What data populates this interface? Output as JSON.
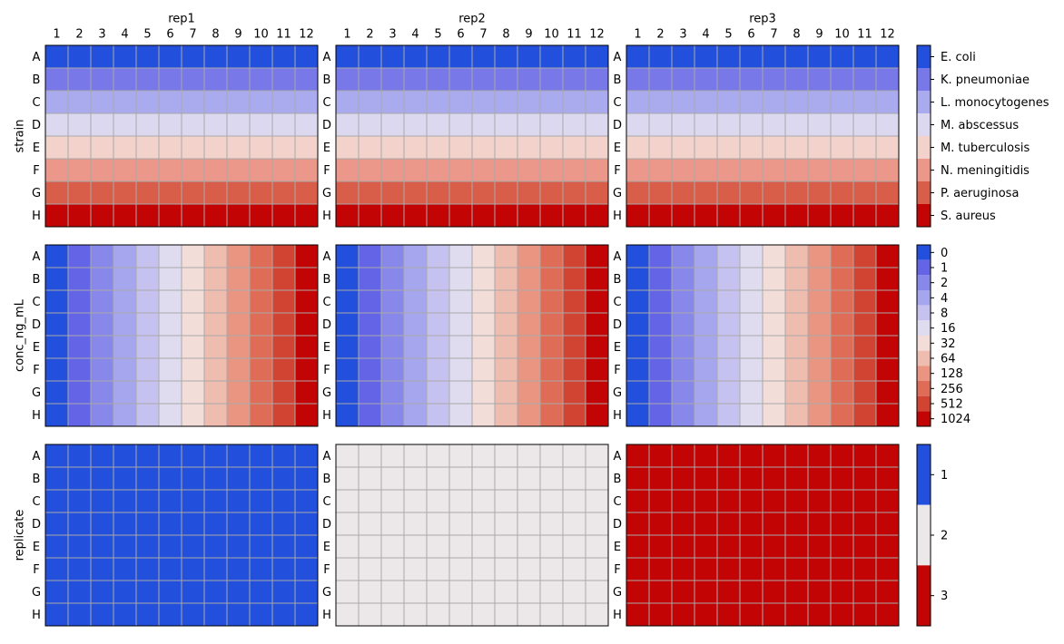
{
  "chart_data": {
    "type": "heatmap",
    "row_labels": [
      "A",
      "B",
      "C",
      "D",
      "E",
      "F",
      "G",
      "H"
    ],
    "col_labels": [
      "1",
      "2",
      "3",
      "4",
      "5",
      "6",
      "7",
      "8",
      "9",
      "10",
      "11",
      "12"
    ],
    "replicates": [
      "rep1",
      "rep2",
      "rep3"
    ],
    "grid": true,
    "legend_position": "right",
    "panels": [
      {
        "variable": "strain",
        "encoding": "by_row",
        "legend_categories": [
          "E. coli",
          "K. pneumoniae",
          "L. monocytogenes",
          "M. abscessus",
          "M. tuberculosis",
          "N. meningitidis",
          "P. aeruginosa",
          "S. aureus"
        ],
        "colors": [
          "#2250dc",
          "#7878e8",
          "#aaaaee",
          "#dcd8f0",
          "#f2d2ca",
          "#eb978a",
          "#d85e4a",
          "#c20404"
        ],
        "values_by_row": [
          "E. coli",
          "K. pneumoniae",
          "L. monocytogenes",
          "M. abscessus",
          "M. tuberculosis",
          "N. meningitidis",
          "P. aeruginosa",
          "S. aureus"
        ]
      },
      {
        "variable": "conc_ng_mL",
        "encoding": "by_column",
        "legend_categories": [
          "0",
          "1",
          "2",
          "4",
          "8",
          "16",
          "32",
          "64",
          "128",
          "256",
          "512",
          "1024"
        ],
        "colors": [
          "#2250dc",
          "#6464e6",
          "#8888ea",
          "#a6a6ee",
          "#c6c2f0",
          "#e0dcf0",
          "#f2ddd8",
          "#efbcb0",
          "#ea9582",
          "#de6c56",
          "#d24432",
          "#c20404"
        ],
        "values_by_column": [
          "0",
          "1",
          "2",
          "4",
          "8",
          "16",
          "32",
          "64",
          "128",
          "256",
          "512",
          "1024"
        ]
      },
      {
        "variable": "replicate",
        "encoding": "by_replicate",
        "legend_categories": [
          "1",
          "2",
          "3"
        ],
        "colors": [
          "#2250dc",
          "#ece8ea",
          "#c20404"
        ],
        "values_by_replicate": [
          "1",
          "2",
          "3"
        ]
      }
    ]
  }
}
